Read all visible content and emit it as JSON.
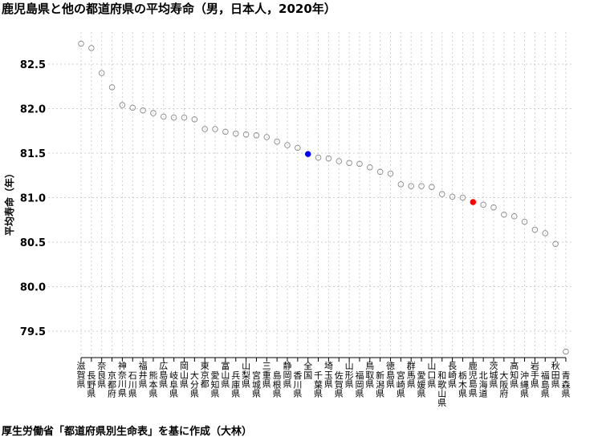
{
  "title": "鹿児島県と他の都道府県の平均寿命（男，日本人，2020年）",
  "source": "厚生労働省「都道府県別生命表」を基に作成（大林）",
  "chart_data": {
    "type": "scatter",
    "title": "鹿児島県と他の都道府県の平均寿命（男，日本人，2020年）",
    "ylabel": "平均寿命（年）",
    "xlabel": "",
    "ylim": [
      79.2,
      82.8
    ],
    "yticks": [
      79.5,
      80.0,
      80.5,
      81.0,
      81.5,
      82.0,
      82.5
    ],
    "ytick_labels": [
      "79.5",
      "80.0",
      "80.5",
      "81.0",
      "81.5",
      "82.0",
      "82.5"
    ],
    "grid": true,
    "categories": [
      "滋賀県",
      "長野県",
      "奈良県",
      "京都府",
      "神奈川県",
      "石川県",
      "福井県",
      "熊本県",
      "広島県",
      "岐阜県",
      "岡山県",
      "大分県",
      "東京都",
      "愛知県",
      "富山県",
      "兵庫県",
      "山梨県",
      "宮城県",
      "三重県",
      "島根県",
      "静岡県",
      "香川県",
      "全国",
      "千葉県",
      "埼玉県",
      "佐賀県",
      "山形県",
      "福岡県",
      "鳥取県",
      "新潟県",
      "徳島県",
      "宮崎県",
      "群馬県",
      "愛媛県",
      "山口県",
      "和歌山県",
      "長崎県",
      "栃木県",
      "鹿児島県",
      "北海道",
      "茨城県",
      "大阪府",
      "高知県",
      "沖縄県",
      "岩手県",
      "福島県",
      "秋田県",
      "青森県"
    ],
    "values": [
      82.73,
      82.68,
      82.4,
      82.24,
      82.04,
      82.01,
      81.98,
      81.95,
      81.91,
      81.9,
      81.9,
      81.88,
      81.77,
      81.77,
      81.74,
      81.72,
      81.71,
      81.7,
      81.68,
      81.63,
      81.59,
      81.56,
      81.49,
      81.45,
      81.44,
      81.41,
      81.39,
      81.38,
      81.34,
      81.29,
      81.27,
      81.15,
      81.13,
      81.13,
      81.12,
      81.04,
      81.01,
      81.0,
      80.95,
      80.92,
      80.89,
      80.81,
      80.79,
      80.73,
      80.64,
      80.6,
      80.48,
      79.27
    ],
    "colors": {
      "default": "#888888",
      "national": "#0000ff",
      "kagoshima": "#ff0000"
    },
    "highlight": {
      "全国": "national",
      "鹿児島県": "kagoshima"
    }
  }
}
